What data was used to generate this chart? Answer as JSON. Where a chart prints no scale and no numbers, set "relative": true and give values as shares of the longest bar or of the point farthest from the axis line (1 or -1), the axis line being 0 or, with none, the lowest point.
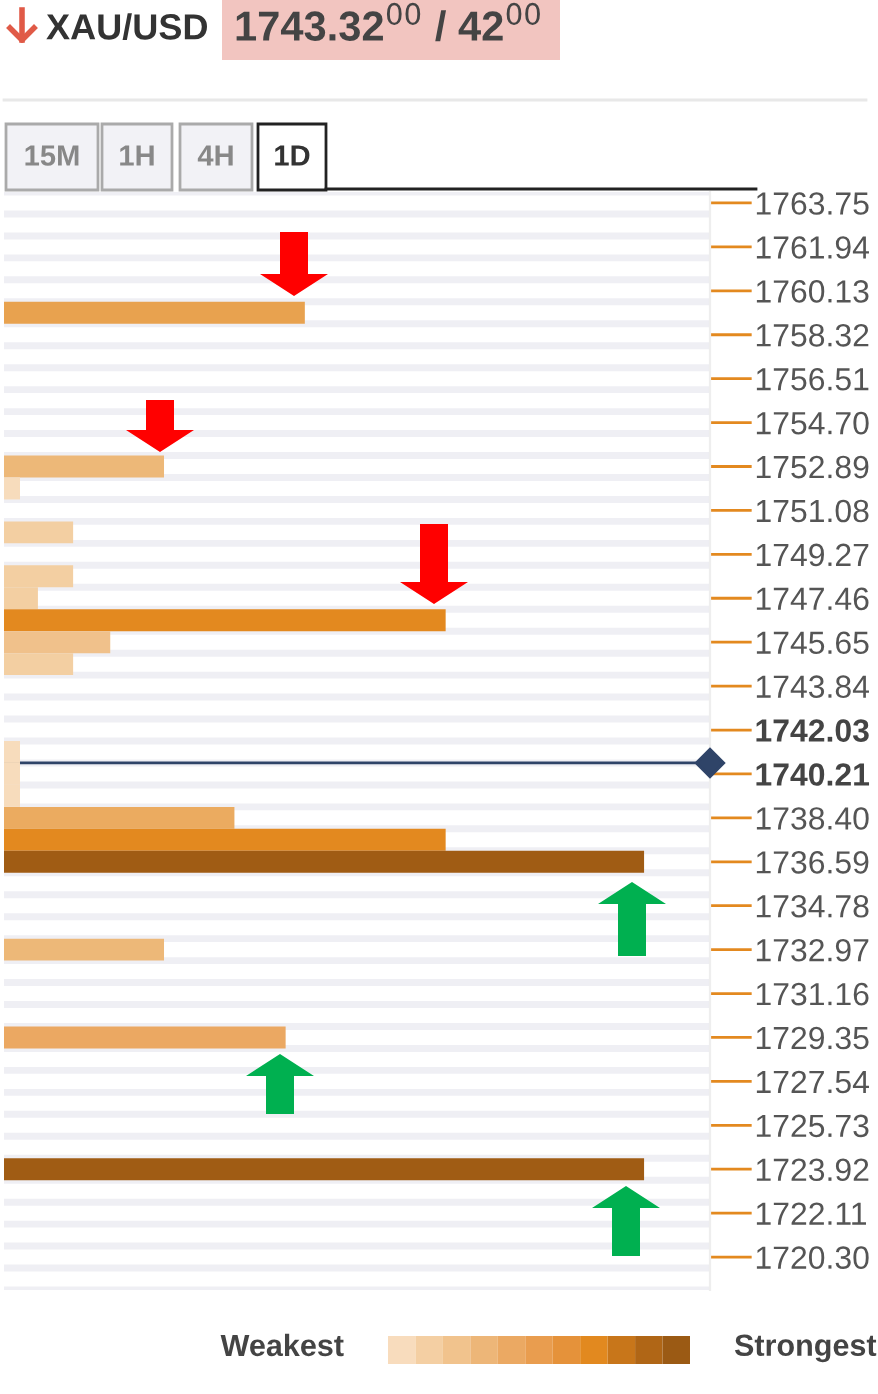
{
  "chart_data": {
    "type": "bar",
    "orientation": "horizontal",
    "relative": true,
    "title": "XAU/USD",
    "annotations": [
      "1743.32$^{00}$ / 42$^{00}$",
      "15M",
      "1H",
      "4H",
      "1D",
      "Weakest",
      "Strongest"
    ],
    "categories": [
      "1763.75",
      null,
      "1761.94",
      null,
      "1760.13",
      null,
      "1758.32",
      null,
      "1756.51",
      null,
      "1754.70",
      null,
      "1752.89",
      null,
      "1751.08",
      null,
      "1749.27",
      null,
      "1747.46",
      null,
      "1745.65",
      null,
      "1743.84",
      null,
      "1742.03",
      null,
      "1740.21",
      null,
      "1738.40",
      null,
      "1736.59",
      null,
      "1734.78",
      null,
      "1732.97",
      null,
      "1731.16",
      null,
      "1729.35",
      null,
      "1727.54",
      null,
      "1725.73",
      null,
      "1723.92",
      null,
      "1722.11",
      null,
      "1720.30",
      null
    ],
    "values": [
      null,
      null,
      null,
      null,
      null,
      0.47,
      null,
      null,
      null,
      null,
      null,
      null,
      0.25,
      0.025,
      null,
      0.108,
      null,
      0.108,
      0.053,
      0.69,
      0.166,
      0.108,
      null,
      null,
      null,
      0.025,
      0.025,
      0.025,
      0.36,
      0.69,
      1,
      null,
      null,
      null,
      0.25,
      null,
      null,
      null,
      0.44,
      null,
      null,
      null,
      null,
      null,
      1,
      null,
      null,
      null,
      null,
      null
    ],
    "colors": [
      null,
      null,
      null,
      null,
      null,
      "#e8a24f",
      null,
      null,
      null,
      null,
      null,
      null,
      "#edb878",
      "#f7dcbc",
      null,
      "#f3cfa2",
      null,
      "#f3cfa2",
      "#f3cfa2",
      "#e3891f",
      "#f0c18b",
      "#f3cfa2",
      null,
      null,
      null,
      "#f7dcbc",
      "#f7dcbc",
      "#f7dcbc",
      "#ebab60",
      "#e3891f",
      "#a05c14",
      null,
      null,
      null,
      "#edb878",
      null,
      null,
      null,
      "#eba862",
      null,
      null,
      null,
      null,
      null,
      "#a05c14",
      null,
      null,
      null,
      null,
      null
    ],
    "ref_lines": [
      {
        "axis": "y",
        "value": "1740.21",
        "color": "#2f4468"
      }
    ],
    "grid": "y",
    "tick_labels": "y"
  }
}
